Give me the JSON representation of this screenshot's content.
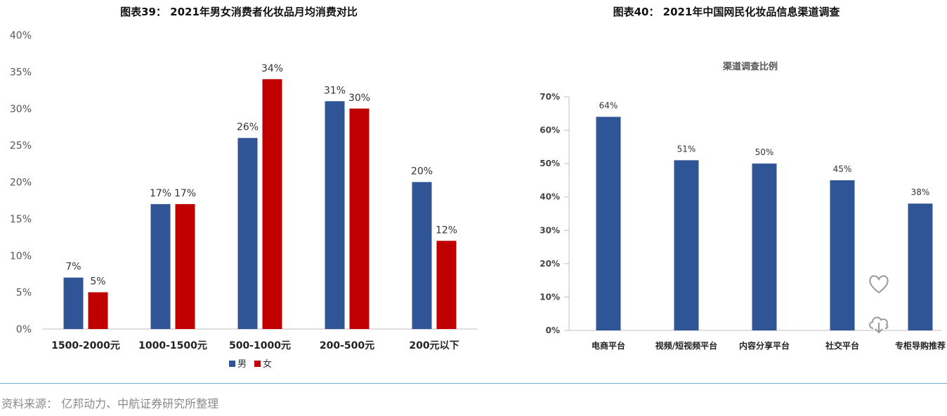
{
  "left_title": "图表39： 2021年男女消费者化妆品月均消费对比",
  "right_title": "图表40： 2021年中国网民化妆品信息渠道调查",
  "source": "资料来源： 亿邦动力、中航证券研究所整理",
  "colors": {
    "male": "#2f5597",
    "female": "#c00000",
    "bar": "#2f5597"
  },
  "watermark_icons": [
    "heart-icon",
    "cloud-download-icon"
  ],
  "chart_data": [
    {
      "type": "bar",
      "title": "",
      "categories": [
        "1500-2000元",
        "1000-1500元",
        "500-1000元",
        "200-500元",
        "200元以下"
      ],
      "series": [
        {
          "name": "男",
          "values": [
            7,
            17,
            26,
            31,
            20
          ],
          "labels": [
            "7%",
            "17%",
            "26%",
            "31%",
            "20%"
          ]
        },
        {
          "name": "女",
          "values": [
            5,
            17,
            34,
            30,
            12
          ],
          "labels": [
            "5%",
            "17%",
            "34%",
            "30%",
            "12%"
          ]
        }
      ],
      "yticks": [
        "0%",
        "5%",
        "10%",
        "15%",
        "20%",
        "25%",
        "30%",
        "35%",
        "40%"
      ],
      "ylim": [
        0,
        40
      ],
      "grid": false,
      "legend": "bottom"
    },
    {
      "type": "bar",
      "title": "渠道调查比例",
      "categories": [
        "电商平台",
        "视频/短视频平台",
        "内容分享平台",
        "社交平台",
        "专柜导购推荐"
      ],
      "values": [
        64,
        51,
        50,
        45,
        38
      ],
      "labels": [
        "64%",
        "51%",
        "50%",
        "45%",
        "38%"
      ],
      "yticks": [
        "0%",
        "10%",
        "20%",
        "30%",
        "40%",
        "50%",
        "60%",
        "70%"
      ],
      "ylim": [
        0,
        70
      ],
      "grid": false,
      "legend": "none"
    }
  ]
}
